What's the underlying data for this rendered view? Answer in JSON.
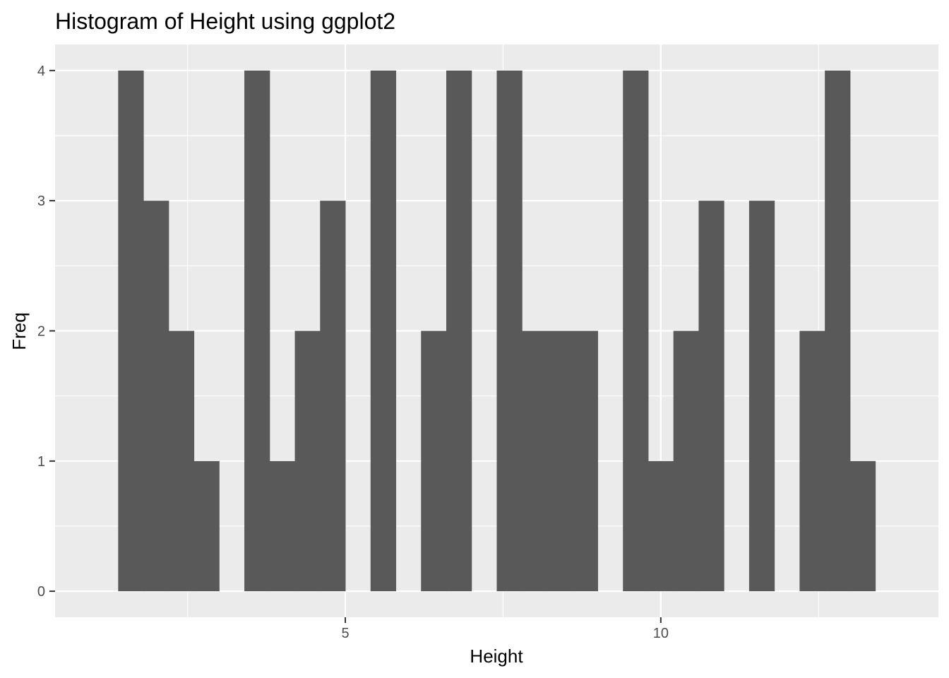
{
  "chart_data": {
    "type": "bar",
    "title": "Histogram of Height using ggplot2",
    "xlabel": "Height",
    "ylabel": "Freq",
    "binwidth": 0.4,
    "bins": [
      {
        "x": 1.6,
        "value": 4
      },
      {
        "x": 2.0,
        "value": 3
      },
      {
        "x": 2.4,
        "value": 2
      },
      {
        "x": 2.8,
        "value": 1
      },
      {
        "x": 3.2,
        "value": 0
      },
      {
        "x": 3.6,
        "value": 4
      },
      {
        "x": 4.0,
        "value": 1
      },
      {
        "x": 4.4,
        "value": 2
      },
      {
        "x": 4.8,
        "value": 3
      },
      {
        "x": 5.2,
        "value": 0
      },
      {
        "x": 5.6,
        "value": 4
      },
      {
        "x": 6.0,
        "value": 0
      },
      {
        "x": 6.4,
        "value": 2
      },
      {
        "x": 6.8,
        "value": 4
      },
      {
        "x": 7.2,
        "value": 0
      },
      {
        "x": 7.6,
        "value": 4
      },
      {
        "x": 8.0,
        "value": 2
      },
      {
        "x": 8.4,
        "value": 2
      },
      {
        "x": 8.8,
        "value": 2
      },
      {
        "x": 9.2,
        "value": 0
      },
      {
        "x": 9.6,
        "value": 4
      },
      {
        "x": 10.0,
        "value": 1
      },
      {
        "x": 10.4,
        "value": 2
      },
      {
        "x": 10.8,
        "value": 3
      },
      {
        "x": 11.2,
        "value": 0
      },
      {
        "x": 11.6,
        "value": 3
      },
      {
        "x": 12.0,
        "value": 0
      },
      {
        "x": 12.4,
        "value": 2
      },
      {
        "x": 12.8,
        "value": 4
      },
      {
        "x": 13.2,
        "value": 1
      }
    ],
    "xlim": [
      0.4,
      14.4
    ],
    "ylim": [
      -0.2,
      4.2
    ],
    "x_ticks": [
      5,
      10
    ],
    "y_ticks": [
      0,
      1,
      2,
      3,
      4
    ],
    "grid": true,
    "colors": {
      "panel": "#ebebeb",
      "grid": "#ffffff",
      "bar": "#595959",
      "tick": "#333333"
    }
  }
}
